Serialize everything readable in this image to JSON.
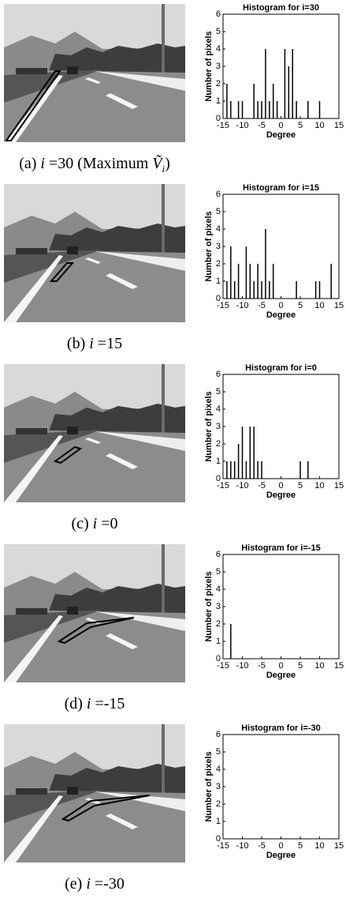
{
  "chart_data": [
    {
      "type": "bar",
      "title": "Histogram for i=30",
      "x_label": "Degree",
      "y_label": "Number of pixels",
      "x": [
        -14,
        -13,
        -11,
        -10,
        -7,
        -6,
        -5,
        -4,
        -3,
        -2,
        -1,
        1,
        2,
        3,
        4,
        7,
        10
      ],
      "values": [
        2,
        1,
        1,
        1,
        2,
        1,
        1,
        4,
        1,
        2,
        1,
        4,
        3,
        4,
        1,
        1,
        1
      ],
      "color": "#000000",
      "xlim": [
        -15,
        15
      ],
      "xticks": [
        -15,
        -10,
        -5,
        0,
        5,
        10,
        15
      ],
      "ylim": [
        0,
        6
      ],
      "yticks": [
        0,
        1,
        2,
        3,
        4,
        5,
        6
      ],
      "caption": [
        {
          "text": "(a) "
        },
        {
          "text": "i",
          "italic": true
        },
        {
          "text": " =30 (Maximum "
        },
        {
          "text": "Ṽ",
          "italic": true
        },
        {
          "text": "i",
          "italic": true,
          "sub": true
        },
        {
          "text": ")"
        }
      ]
    },
    {
      "type": "bar",
      "title": "Histogram for i=15",
      "x_label": "Degree",
      "y_label": "Number of pixels",
      "x": [
        -14,
        -13,
        -12,
        -11,
        -9,
        -8,
        -7,
        -6,
        -5,
        -4,
        -3,
        -2,
        4,
        9,
        10,
        13
      ],
      "values": [
        1,
        3,
        1,
        2,
        3,
        2,
        1,
        2,
        1,
        4,
        1,
        2,
        1,
        1,
        1,
        2
      ],
      "color": "#000000",
      "xlim": [
        -15,
        15
      ],
      "xticks": [
        -15,
        -10,
        -5,
        0,
        5,
        10,
        15
      ],
      "ylim": [
        0,
        6
      ],
      "yticks": [
        0,
        1,
        2,
        3,
        4,
        5,
        6
      ],
      "caption": [
        {
          "text": "(b) "
        },
        {
          "text": "i",
          "italic": true
        },
        {
          "text": " =15"
        }
      ]
    },
    {
      "type": "bar",
      "title": "Histogram for i=0",
      "x_label": "Degree",
      "y_label": "Number of pixels",
      "x": [
        -14,
        -13,
        -12,
        -11,
        -10,
        -9,
        -8,
        -7,
        -6,
        -5,
        5,
        7
      ],
      "values": [
        1,
        1,
        1,
        2,
        3,
        1,
        3,
        3,
        1,
        1,
        1,
        1
      ],
      "color": "#000000",
      "xlim": [
        -15,
        15
      ],
      "xticks": [
        -15,
        -10,
        -5,
        0,
        5,
        10,
        15
      ],
      "ylim": [
        0,
        6
      ],
      "yticks": [
        0,
        1,
        2,
        3,
        4,
        5,
        6
      ],
      "caption": [
        {
          "text": "(c) "
        },
        {
          "text": "i",
          "italic": true
        },
        {
          "text": " =0"
        }
      ]
    },
    {
      "type": "bar",
      "title": "Histogram for i=-15",
      "x_label": "Degree",
      "y_label": "Number of pixels",
      "x": [
        -13
      ],
      "values": [
        2
      ],
      "color": "#000000",
      "xlim": [
        -15,
        15
      ],
      "xticks": [
        -15,
        -10,
        -5,
        0,
        5,
        10,
        15
      ],
      "ylim": [
        0,
        6
      ],
      "yticks": [
        0,
        1,
        2,
        3,
        4,
        5,
        6
      ],
      "caption": [
        {
          "text": "(d) "
        },
        {
          "text": "i",
          "italic": true
        },
        {
          "text": " =-15"
        }
      ]
    },
    {
      "type": "bar",
      "title": "Histogram for i=-30",
      "x_label": "Degree",
      "y_label": "Number of pixels",
      "x": [],
      "values": [],
      "color": "#000000",
      "xlim": [
        -15,
        15
      ],
      "xticks": [
        -15,
        -10,
        -5,
        0,
        5,
        10,
        15
      ],
      "ylim": [
        0,
        6
      ],
      "yticks": [
        0,
        1,
        2,
        3,
        4,
        5,
        6
      ],
      "caption": [
        {
          "text": "(e) "
        },
        {
          "text": "i",
          "italic": true
        },
        {
          "text": " =-30"
        }
      ]
    }
  ]
}
